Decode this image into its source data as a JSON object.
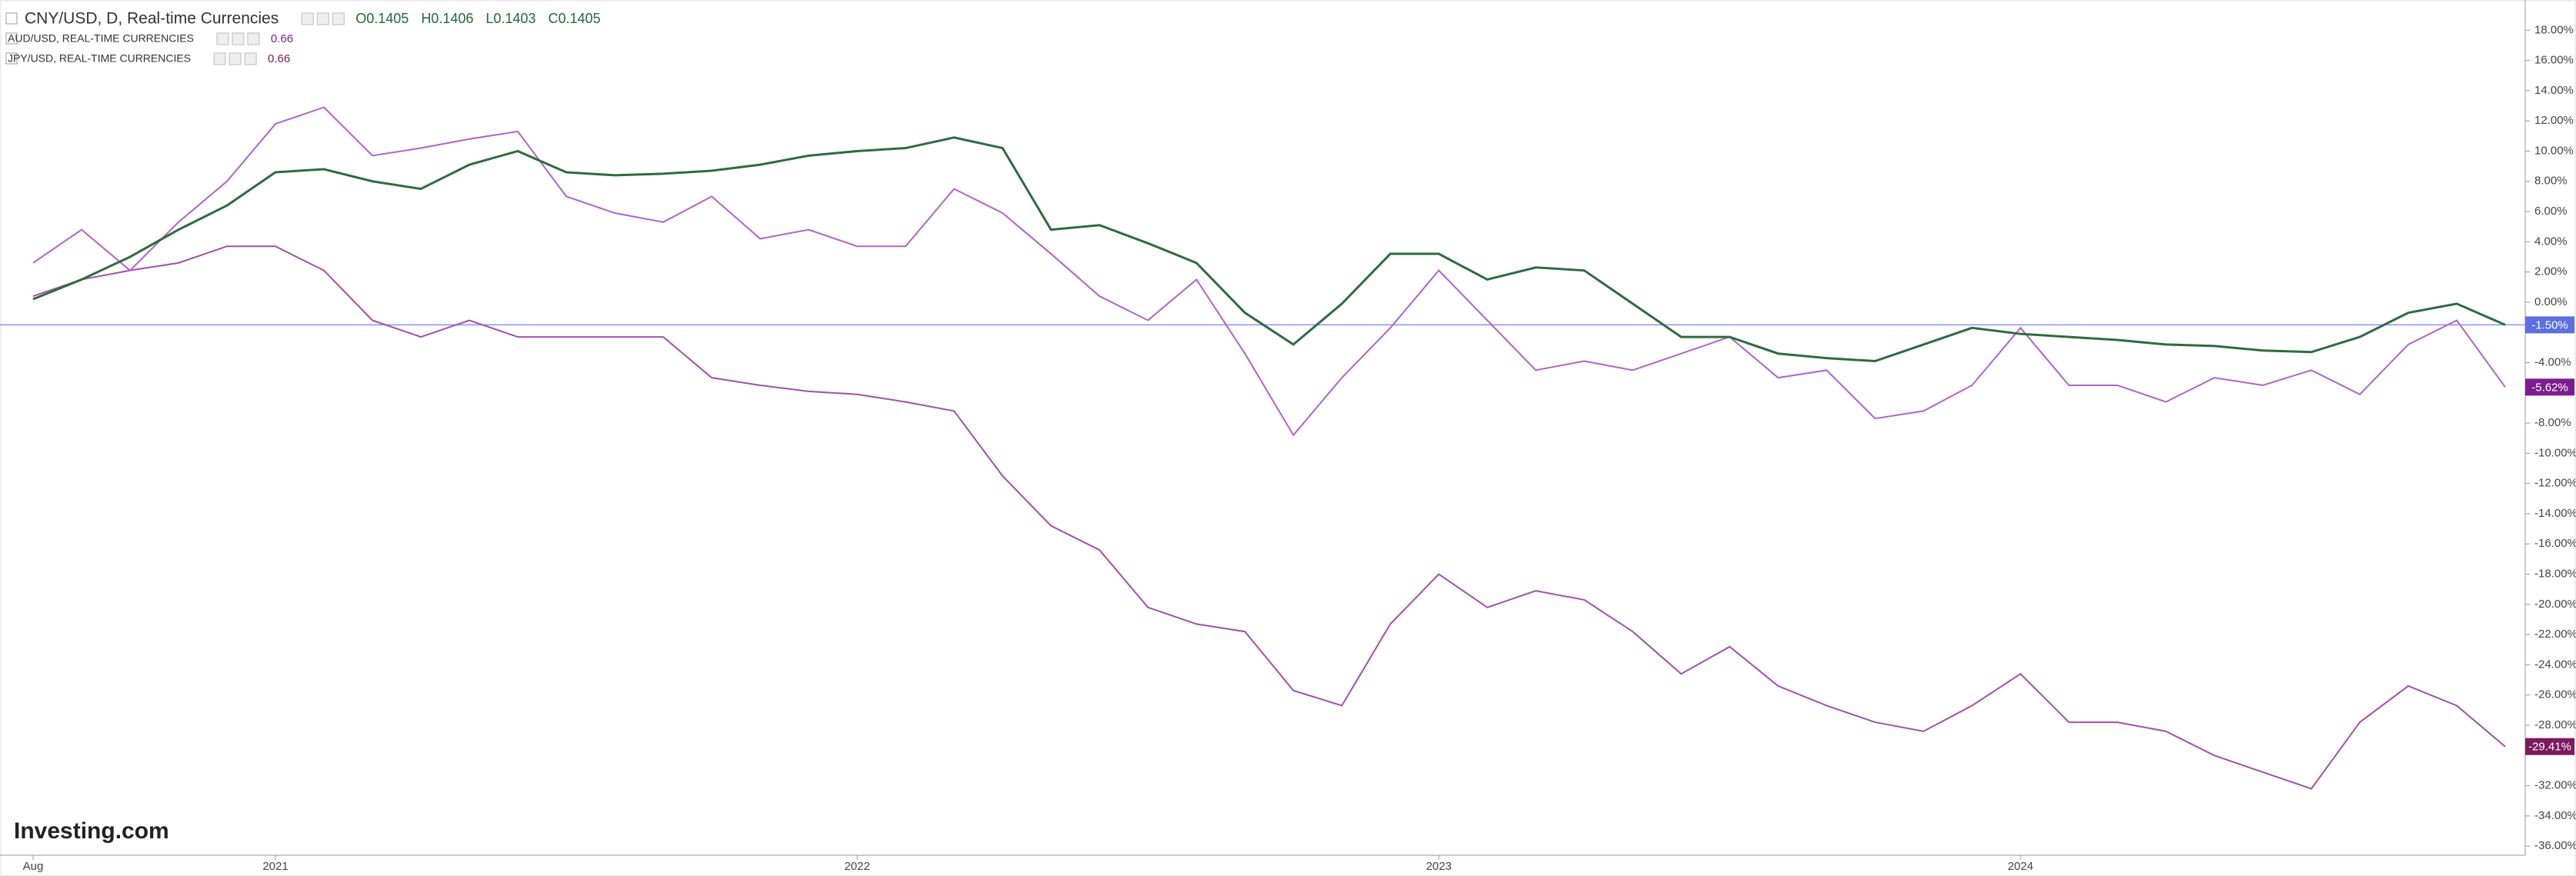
{
  "chart_data": {
    "type": "line",
    "watermark": "Investing.com",
    "categories": [
      "Aug",
      null,
      null,
      null,
      null,
      "2021",
      null,
      null,
      null,
      null,
      null,
      null,
      null,
      null,
      null,
      null,
      null,
      "2022",
      null,
      null,
      null,
      null,
      null,
      null,
      null,
      null,
      null,
      null,
      null,
      "2023",
      null,
      null,
      null,
      null,
      null,
      null,
      null,
      null,
      null,
      null,
      null,
      "2024",
      null,
      null,
      null,
      null,
      null,
      null,
      null,
      null,
      null,
      null
    ],
    "ylim": [
      -36.5,
      20
    ],
    "yticks": [
      {
        "value": 18,
        "label": "18.00%"
      },
      {
        "value": 16,
        "label": "16.00%"
      },
      {
        "value": 14,
        "label": "14.00%"
      },
      {
        "value": 12,
        "label": "12.00%"
      },
      {
        "value": 10,
        "label": "10.00%"
      },
      {
        "value": 8,
        "label": "8.00%"
      },
      {
        "value": 6,
        "label": "6.00%"
      },
      {
        "value": 4,
        "label": "4.00%"
      },
      {
        "value": 2,
        "label": "2.00%"
      },
      {
        "value": 0,
        "label": "0.00%"
      },
      {
        "value": -4,
        "label": "-4.00%"
      },
      {
        "value": -8,
        "label": "-8.00%"
      },
      {
        "value": -10,
        "label": "-10.00%"
      },
      {
        "value": -12,
        "label": "-12.00%"
      },
      {
        "value": -14,
        "label": "-14.00%"
      },
      {
        "value": -16,
        "label": "-16.00%"
      },
      {
        "value": -18,
        "label": "-18.00%"
      },
      {
        "value": -20,
        "label": "-20.00%"
      },
      {
        "value": -22,
        "label": "-22.00%"
      },
      {
        "value": -24,
        "label": "-24.00%"
      },
      {
        "value": -26,
        "label": "-26.00%"
      },
      {
        "value": -28,
        "label": "-28.00%"
      },
      {
        "value": -32,
        "label": "-32.00%"
      },
      {
        "value": -34,
        "label": "-34.00%"
      },
      {
        "value": -36,
        "label": "-36.00%"
      }
    ],
    "series": [
      {
        "name": "CNY/USD, D, Real-time Currencies",
        "quote": [
          "O0.1405",
          "H0.1406",
          "L0.1403",
          "C0.1405"
        ],
        "color": "#2f6b3f",
        "badge_color": "#5b6fe0",
        "last_value_label": "-1.50%",
        "values": [
          0.2,
          1.5,
          3,
          4.8,
          6.4,
          8.6,
          8.8,
          8,
          7.5,
          9.1,
          10,
          8.6,
          8.4,
          8.5,
          8.7,
          9.1,
          9.7,
          10,
          10.2,
          10.9,
          10.2,
          4.8,
          5.1,
          3.9,
          2.6,
          -0.7,
          -2.8,
          -0.1,
          3.2,
          3.2,
          1.5,
          2.3,
          2.1,
          -0.1,
          -2.3,
          -2.3,
          -3.4,
          -3.7,
          -3.9,
          -2.8,
          -1.7,
          -2.1,
          -2.3,
          -2.5,
          -2.8,
          -2.9,
          -3.2,
          -3.3,
          -2.3,
          -0.7,
          -0.1,
          -1.5
        ]
      },
      {
        "name": "AUD/USD, REAL-TIME CURRENCIES",
        "quote": [
          "0.66"
        ],
        "color": "#b462cc",
        "badge_color": "#7a1e8e",
        "last_value_label": "-5.62%",
        "values": [
          2.6,
          4.8,
          2.1,
          5.3,
          8,
          11.8,
          12.9,
          9.7,
          10.2,
          10.8,
          11.3,
          7,
          5.9,
          5.3,
          7,
          4.2,
          4.8,
          3.7,
          3.7,
          7.5,
          5.9,
          3.2,
          0.4,
          -1.2,
          1.5,
          -3.4,
          -8.8,
          -5,
          -1.7,
          2.1,
          -1.2,
          -4.5,
          -3.9,
          -4.5,
          -3.4,
          -2.3,
          -5,
          -4.5,
          -7.7,
          -7.2,
          -5.5,
          -1.7,
          -5.5,
          -5.5,
          -6.6,
          -5,
          -5.5,
          -4.5,
          -6.1,
          -2.8,
          -1.2,
          -5.62
        ]
      },
      {
        "name": "JPY/USD, REAL-TIME CURRENCIES",
        "quote": [
          "0.66"
        ],
        "color": "#a34fae",
        "badge_color": "#7b1a5e",
        "last_value_label": "-29.41%",
        "values": [
          0.4,
          1.5,
          2.1,
          2.6,
          3.7,
          3.7,
          2.1,
          -1.2,
          -2.3,
          -1.2,
          -2.3,
          -2.3,
          -2.3,
          -2.3,
          -5,
          -5.5,
          -5.9,
          -6.1,
          -6.6,
          -7.2,
          -11.5,
          -14.8,
          -16.4,
          -20.2,
          -21.3,
          -21.8,
          -25.7,
          -26.7,
          -21.3,
          -18,
          -20.2,
          -19.1,
          -19.7,
          -21.8,
          -24.6,
          -22.8,
          -25.4,
          -26.7,
          -27.8,
          -28.4,
          -26.7,
          -24.6,
          -27.8,
          -27.8,
          -28.4,
          -30,
          -31.1,
          -32.2,
          -27.8,
          -25.4,
          -26.7,
          -29.41
        ]
      }
    ]
  }
}
